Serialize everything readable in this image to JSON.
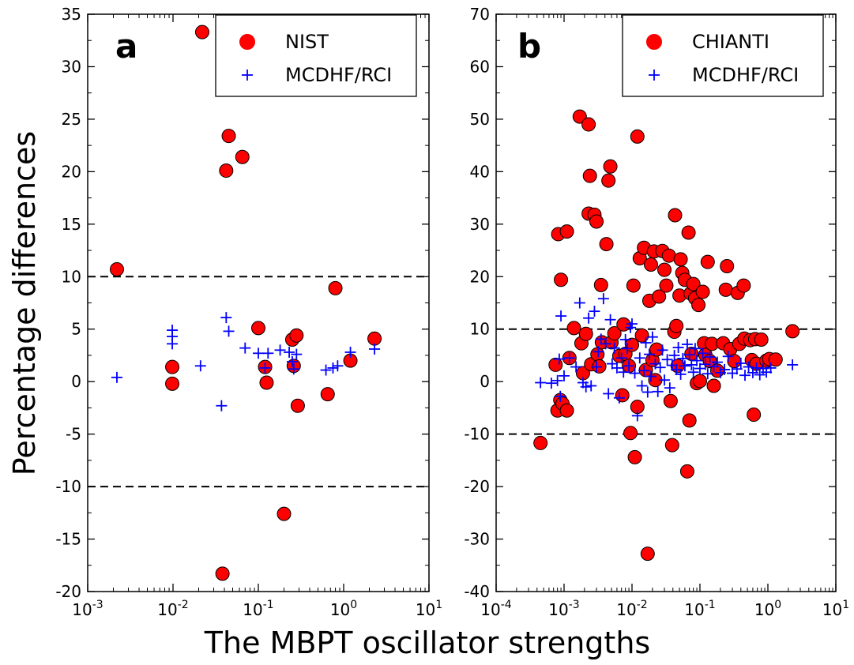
{
  "figure": {
    "xlabel": "The MBPT oscillator strengths",
    "ylabel": "Percentage differences"
  },
  "chart_data": [
    {
      "type": "scatter",
      "panel_label": "a",
      "xscale": "log",
      "xlim": [
        0.001,
        10
      ],
      "ylim": [
        -20,
        35
      ],
      "xticks": [
        {
          "value": 0.001,
          "exp": "-3"
        },
        {
          "value": 0.01,
          "exp": "-2"
        },
        {
          "value": 0.1,
          "exp": "-1"
        },
        {
          "value": 1,
          "exp": "0"
        },
        {
          "value": 10,
          "exp": "1"
        }
      ],
      "yticks": [
        -20,
        -15,
        -10,
        -5,
        0,
        5,
        10,
        15,
        20,
        25,
        30,
        35
      ],
      "reference_lines": [
        10,
        -10
      ],
      "legend_position": "top-right",
      "series": [
        {
          "name": "NIST",
          "marker": "circle",
          "color": "#ff0000",
          "points": [
            [
              0.0022,
              10.7
            ],
            [
              0.0098,
              1.4
            ],
            [
              0.0098,
              -0.2
            ],
            [
              0.022,
              33.3
            ],
            [
              0.038,
              -18.3
            ],
            [
              0.042,
              20.1
            ],
            [
              0.045,
              23.4
            ],
            [
              0.065,
              21.4
            ],
            [
              0.1,
              5.1
            ],
            [
              0.12,
              1.4
            ],
            [
              0.125,
              -0.1
            ],
            [
              0.2,
              -12.6
            ],
            [
              0.25,
              4.0
            ],
            [
              0.26,
              1.5
            ],
            [
              0.28,
              4.4
            ],
            [
              0.29,
              -2.3
            ],
            [
              0.65,
              -1.2
            ],
            [
              0.8,
              8.9
            ],
            [
              1.2,
              2.0
            ],
            [
              2.3,
              4.1
            ]
          ]
        },
        {
          "name": "MCDHF/RCI",
          "marker": "plus",
          "color": "#0000ff",
          "points": [
            [
              0.0022,
              0.4
            ],
            [
              0.0098,
              4.9
            ],
            [
              0.0098,
              4.3
            ],
            [
              0.0098,
              3.6
            ],
            [
              0.021,
              1.5
            ],
            [
              0.037,
              -2.3
            ],
            [
              0.042,
              6.1
            ],
            [
              0.045,
              4.8
            ],
            [
              0.07,
              3.2
            ],
            [
              0.1,
              2.7
            ],
            [
              0.12,
              1.3
            ],
            [
              0.13,
              2.7
            ],
            [
              0.18,
              3.0
            ],
            [
              0.23,
              2.8
            ],
            [
              0.25,
              1.9
            ],
            [
              0.26,
              1.2
            ],
            [
              0.28,
              2.6
            ],
            [
              0.62,
              1.1
            ],
            [
              0.75,
              1.3
            ],
            [
              0.85,
              1.5
            ],
            [
              1.2,
              2.8
            ],
            [
              2.3,
              3.1
            ]
          ]
        }
      ]
    },
    {
      "type": "scatter",
      "panel_label": "b",
      "xscale": "log",
      "xlim": [
        0.0001,
        10
      ],
      "ylim": [
        -40,
        70
      ],
      "xticks": [
        {
          "value": 0.0001,
          "exp": "-4"
        },
        {
          "value": 0.001,
          "exp": "-3"
        },
        {
          "value": 0.01,
          "exp": "-2"
        },
        {
          "value": 0.1,
          "exp": "-1"
        },
        {
          "value": 1,
          "exp": "0"
        },
        {
          "value": 10,
          "exp": "1"
        }
      ],
      "yticks": [
        -40,
        -30,
        -20,
        -10,
        0,
        10,
        20,
        30,
        40,
        50,
        60,
        70
      ],
      "reference_lines": [
        10,
        -10
      ],
      "legend_position": "top-right",
      "series": [
        {
          "name": "CHIANTI",
          "marker": "circle",
          "color": "#ff0000",
          "points": [
            [
              0.00045,
              -11.7
            ],
            [
              0.00075,
              3.2
            ],
            [
              0.0008,
              -5.5
            ],
            [
              0.00082,
              28.1
            ],
            [
              0.0009,
              19.4
            ],
            [
              0.00088,
              -3.5
            ],
            [
              0.00095,
              -4.2
            ],
            [
              0.0011,
              -5.5
            ],
            [
              0.0011,
              28.6
            ],
            [
              0.0012,
              4.5
            ],
            [
              0.0014,
              10.2
            ],
            [
              0.0017,
              50.5
            ],
            [
              0.0018,
              7.3
            ],
            [
              0.0019,
              1.6
            ],
            [
              0.0021,
              9.1
            ],
            [
              0.0023,
              32.0
            ],
            [
              0.0023,
              49.0
            ],
            [
              0.0024,
              39.2
            ],
            [
              0.0025,
              3.3
            ],
            [
              0.0028,
              31.8
            ],
            [
              0.003,
              30.5
            ],
            [
              0.0031,
              5.2
            ],
            [
              0.0033,
              2.9
            ],
            [
              0.0035,
              18.4
            ],
            [
              0.0036,
              7.5
            ],
            [
              0.0042,
              26.2
            ],
            [
              0.0045,
              38.3
            ],
            [
              0.0048,
              41.0
            ],
            [
              0.005,
              7.5
            ],
            [
              0.0055,
              9.2
            ],
            [
              0.0065,
              4.9
            ],
            [
              0.0072,
              -2.6
            ],
            [
              0.0075,
              10.9
            ],
            [
              0.008,
              5.3
            ],
            [
              0.009,
              3.0
            ],
            [
              0.0095,
              -9.8
            ],
            [
              0.01,
              7.0
            ],
            [
              0.0105,
              18.3
            ],
            [
              0.011,
              -14.4
            ],
            [
              0.012,
              46.7
            ],
            [
              0.012,
              -4.8
            ],
            [
              0.013,
              23.5
            ],
            [
              0.014,
              8.8
            ],
            [
              0.015,
              25.5
            ],
            [
              0.016,
              2.2
            ],
            [
              0.017,
              -32.8
            ],
            [
              0.018,
              15.4
            ],
            [
              0.019,
              22.3
            ],
            [
              0.02,
              4.1
            ],
            [
              0.021,
              24.8
            ],
            [
              0.022,
              0.3
            ],
            [
              0.023,
              6.1
            ],
            [
              0.025,
              16.2
            ],
            [
              0.028,
              24.9
            ],
            [
              0.03,
              21.3
            ],
            [
              0.032,
              18.3
            ],
            [
              0.035,
              24.0
            ],
            [
              0.037,
              -3.7
            ],
            [
              0.039,
              -12.1
            ],
            [
              0.042,
              9.5
            ],
            [
              0.043,
              31.7
            ],
            [
              0.045,
              10.6
            ],
            [
              0.047,
              3.0
            ],
            [
              0.05,
              16.4
            ],
            [
              0.052,
              23.3
            ],
            [
              0.055,
              20.7
            ],
            [
              0.06,
              19.4
            ],
            [
              0.065,
              -17.1
            ],
            [
              0.068,
              28.4
            ],
            [
              0.07,
              -7.4
            ],
            [
              0.073,
              16.8
            ],
            [
              0.075,
              5.3
            ],
            [
              0.08,
              18.6
            ],
            [
              0.085,
              15.9
            ],
            [
              0.09,
              -0.3
            ],
            [
              0.095,
              14.6
            ],
            [
              0.1,
              0.1
            ],
            [
              0.11,
              17.1
            ],
            [
              0.115,
              7.3
            ],
            [
              0.12,
              5.1
            ],
            [
              0.13,
              22.8
            ],
            [
              0.14,
              3.9
            ],
            [
              0.15,
              7.2
            ],
            [
              0.16,
              -0.8
            ],
            [
              0.18,
              2.1
            ],
            [
              0.22,
              7.3
            ],
            [
              0.24,
              17.5
            ],
            [
              0.25,
              22.0
            ],
            [
              0.28,
              6.2
            ],
            [
              0.32,
              3.9
            ],
            [
              0.36,
              16.9
            ],
            [
              0.38,
              7.2
            ],
            [
              0.44,
              18.3
            ],
            [
              0.45,
              8.2
            ],
            [
              0.55,
              7.9
            ],
            [
              0.58,
              4.1
            ],
            [
              0.62,
              -6.3
            ],
            [
              0.65,
              8.1
            ],
            [
              0.68,
              3.4
            ],
            [
              0.8,
              8.0
            ],
            [
              0.95,
              4.0
            ],
            [
              1.05,
              4.3
            ],
            [
              1.3,
              4.2
            ],
            [
              2.3,
              9.6
            ]
          ]
        },
        {
          "name": "MCDHF/RCI",
          "marker": "plus",
          "color": "#0000ff",
          "points": [
            [
              0.00045,
              -0.2
            ],
            [
              0.00065,
              -0.3
            ],
            [
              0.0008,
              0.2
            ],
            [
              0.00085,
              4.3
            ],
            [
              0.00088,
              -2.8
            ],
            [
              0.0009,
              12.5
            ],
            [
              0.001,
              1.1
            ],
            [
              0.0012,
              4.5
            ],
            [
              0.0015,
              2.8
            ],
            [
              0.0017,
              15.0
            ],
            [
              0.0019,
              -0.2
            ],
            [
              0.0021,
              -1.0
            ],
            [
              0.0023,
              12.1
            ],
            [
              0.0025,
              -0.8
            ],
            [
              0.0028,
              13.4
            ],
            [
              0.003,
              2.8
            ],
            [
              0.0032,
              5.7
            ],
            [
              0.0035,
              8.1
            ],
            [
              0.0038,
              15.8
            ],
            [
              0.0041,
              7.2
            ],
            [
              0.0045,
              -2.3
            ],
            [
              0.0048,
              11.8
            ],
            [
              0.0051,
              3.4
            ],
            [
              0.0055,
              6.4
            ],
            [
              0.006,
              2.6
            ],
            [
              0.0065,
              -3.1
            ],
            [
              0.007,
              4.5
            ],
            [
              0.0075,
              1.8
            ],
            [
              0.008,
              8.0
            ],
            [
              0.0085,
              6.3
            ],
            [
              0.009,
              3.0
            ],
            [
              0.0095,
              10.3
            ],
            [
              0.01,
              11.0
            ],
            [
              0.011,
              1.6
            ],
            [
              0.012,
              -6.5
            ],
            [
              0.013,
              4.5
            ],
            [
              0.014,
              -0.8
            ],
            [
              0.015,
              2.1
            ],
            [
              0.016,
              7.4
            ],
            [
              0.017,
              -2.0
            ],
            [
              0.018,
              5.2
            ],
            [
              0.019,
              1.0
            ],
            [
              0.02,
              8.5
            ],
            [
              0.022,
              3.4
            ],
            [
              0.024,
              -1.9
            ],
            [
              0.026,
              2.7
            ],
            [
              0.028,
              6.0
            ],
            [
              0.03,
              0.3
            ],
            [
              0.033,
              4.2
            ],
            [
              0.036,
              -1.2
            ],
            [
              0.039,
              3.1
            ],
            [
              0.042,
              5.0
            ],
            [
              0.045,
              2.3
            ],
            [
              0.048,
              6.5
            ],
            [
              0.052,
              1.4
            ],
            [
              0.056,
              4.4
            ],
            [
              0.06,
              3.0
            ],
            [
              0.065,
              7.1
            ],
            [
              0.07,
              5.1
            ],
            [
              0.075,
              3.2
            ],
            [
              0.08,
              1.8
            ],
            [
              0.085,
              6.3
            ],
            [
              0.09,
              4.0
            ],
            [
              0.1,
              2.5
            ],
            [
              0.11,
              5.4
            ],
            [
              0.12,
              3.3
            ],
            [
              0.13,
              1.5
            ],
            [
              0.14,
              4.7
            ],
            [
              0.16,
              2.9
            ],
            [
              0.18,
              3.7
            ],
            [
              0.2,
              1.7
            ],
            [
              0.23,
              2.3
            ],
            [
              0.26,
              4.8
            ],
            [
              0.3,
              1.6
            ],
            [
              0.35,
              2.4
            ],
            [
              0.4,
              3.5
            ],
            [
              0.46,
              1.2
            ],
            [
              0.52,
              2.8
            ],
            [
              0.6,
              1.7
            ],
            [
              0.68,
              2.6
            ],
            [
              0.76,
              1.3
            ],
            [
              0.85,
              2.5
            ],
            [
              0.95,
              1.8
            ],
            [
              1.1,
              2.6
            ],
            [
              2.3,
              3.2
            ]
          ]
        }
      ]
    }
  ]
}
